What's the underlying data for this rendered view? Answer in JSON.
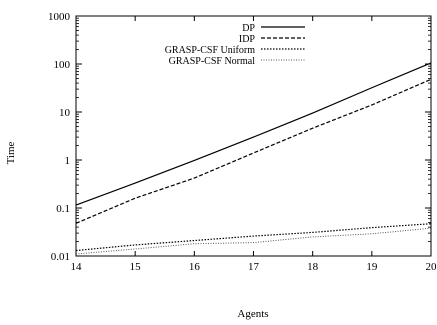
{
  "chart_data": {
    "type": "line",
    "title": "",
    "xlabel": "Agents",
    "ylabel": "Time",
    "xlim": [
      14,
      20
    ],
    "ylim": [
      0.01,
      1000
    ],
    "yscale": "log",
    "grid": false,
    "legend_position": "top-right",
    "x": [
      14,
      15,
      16,
      17,
      18,
      19,
      20
    ],
    "x_ticks": [
      "14",
      "15",
      "16",
      "17",
      "18",
      "19",
      "20"
    ],
    "y_ticks": [
      "0.01",
      "0.1",
      "1",
      "10",
      "100",
      "1000"
    ],
    "y_tick_values": [
      0.01,
      0.1,
      1,
      10,
      100,
      1000
    ],
    "series": [
      {
        "name": "DP",
        "dash": "solid",
        "color": "#000000",
        "values": [
          0.115,
          0.33,
          0.98,
          3.0,
          9.5,
          32,
          105
        ]
      },
      {
        "name": "IDP",
        "dash": "dashed",
        "color": "#000000",
        "values": [
          0.048,
          0.16,
          0.42,
          1.4,
          4.6,
          14,
          48
        ]
      },
      {
        "name": "GRASP-CSF Uniform",
        "dash": "dotted",
        "color": "#000000",
        "values": [
          0.013,
          0.017,
          0.021,
          0.026,
          0.031,
          0.039,
          0.047
        ]
      },
      {
        "name": "GRASP-CSF Normal",
        "dash": "dotted-light",
        "color": "#555555",
        "values": [
          0.011,
          0.014,
          0.018,
          0.019,
          0.025,
          0.029,
          0.038
        ]
      }
    ]
  }
}
